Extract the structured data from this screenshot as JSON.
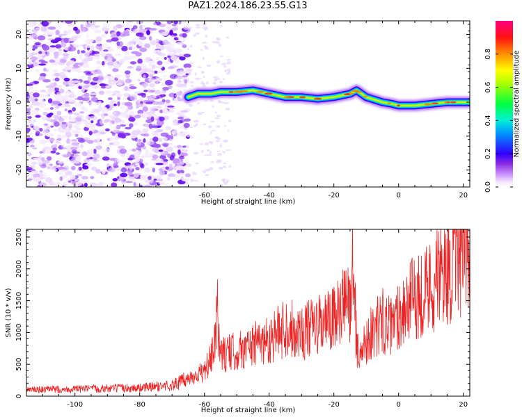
{
  "title": "PAZ1.2024.186.23.55.G13",
  "chart_data": [
    {
      "type": "heatmap",
      "xlabel": "Height of straight line (km)",
      "ylabel": "Frequency (Hz)",
      "xlim": [
        -115,
        22
      ],
      "ylim": [
        -25,
        24
      ],
      "xticks": [
        -100,
        -80,
        -60,
        -40,
        -20,
        0,
        20
      ],
      "yticks": [
        -20,
        -10,
        0,
        10,
        20
      ],
      "colorbar": {
        "label": "Normalized spectral amplitude",
        "range": [
          0,
          1
        ],
        "ticks": [
          0.0,
          0.2,
          0.4,
          0.6,
          0.8
        ]
      },
      "noise_region_x": [
        -115,
        -65
      ],
      "signal_ridge": {
        "x": [
          -65,
          -62,
          -58,
          -55,
          -50,
          -45,
          -40,
          -35,
          -30,
          -25,
          -20,
          -15,
          -13,
          -10,
          -5,
          -2,
          0,
          5,
          10,
          15,
          22
        ],
        "frequency": [
          1.5,
          2.5,
          2.5,
          3,
          3,
          3.5,
          2.5,
          1.5,
          1.5,
          1,
          1.5,
          2.5,
          3.5,
          1.5,
          0,
          -0.5,
          -1,
          -1,
          -0.5,
          0,
          0
        ]
      },
      "grid": false,
      "legend": "none"
    },
    {
      "type": "line",
      "xlabel": "Height of straight line (km)",
      "ylabel": "SNR (10 * v/v)",
      "xlim": [
        -115,
        22
      ],
      "ylim": [
        0,
        2620
      ],
      "xticks": [
        -100,
        -80,
        -60,
        -40,
        -20,
        0,
        20
      ],
      "yticks": [
        0,
        500,
        1000,
        1500,
        2000,
        2500
      ],
      "color": "#ee2222",
      "series": [
        {
          "x": [
            -115,
            -100,
            -80,
            -70,
            -66,
            -62,
            -60,
            -57,
            -56,
            -55,
            -50,
            -45,
            -40,
            -37,
            -35,
            -30,
            -25,
            -20,
            -17,
            -15,
            -14,
            -13,
            -12,
            -10,
            -5,
            -2,
            0,
            5,
            10,
            15,
            20,
            22
          ],
          "values": [
            100,
            110,
            130,
            170,
            250,
            350,
            380,
            700,
            1300,
            650,
            700,
            800,
            900,
            1000,
            1100,
            1000,
            1100,
            1200,
            1400,
            1500,
            2200,
            800,
            600,
            900,
            1200,
            1050,
            1300,
            1550,
            1750,
            2000,
            2200,
            2300
          ]
        }
      ],
      "grid": false,
      "legend": "none"
    }
  ]
}
